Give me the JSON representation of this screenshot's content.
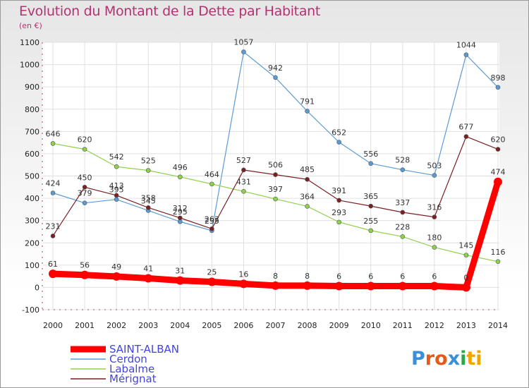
{
  "chart_data": {
    "type": "line",
    "title": "Evolution du Montant de la Dette par Habitant",
    "unit_label": "(en €)",
    "x": [
      "2000",
      "2001",
      "2002",
      "2003",
      "2004",
      "2005",
      "2006",
      "2007",
      "2008",
      "2009",
      "2010",
      "2011",
      "2012",
      "2013",
      "2014"
    ],
    "ylim": [
      -100,
      1100
    ],
    "yticks": [
      -100,
      0,
      100,
      200,
      300,
      400,
      500,
      600,
      700,
      800,
      900,
      1000,
      1100
    ],
    "grid": true,
    "legend_position": "bottom-left",
    "series": [
      {
        "name": "SAINT-ALBAN",
        "color": "#ff0000",
        "values": [
          61,
          56,
          49,
          41,
          31,
          25,
          16,
          8,
          8,
          6,
          6,
          6,
          6,
          0,
          474
        ]
      },
      {
        "name": "Cerdon",
        "color": "#5b9bd5",
        "values": [
          424,
          379,
          395,
          345,
          295,
          255,
          1057,
          942,
          791,
          652,
          556,
          528,
          503,
          1044,
          898
        ]
      },
      {
        "name": "Labalme",
        "color": "#8fd14f",
        "values": [
          646,
          620,
          542,
          525,
          496,
          464,
          431,
          397,
          364,
          293,
          255,
          228,
          180,
          145,
          116
        ]
      },
      {
        "name": "Mérignat",
        "color": "#7a1f22",
        "values": [
          231,
          450,
          413,
          358,
          312,
          263,
          527,
          506,
          485,
          391,
          365,
          337,
          316,
          677,
          620
        ]
      }
    ]
  },
  "brand": {
    "text": "Proxiti"
  }
}
